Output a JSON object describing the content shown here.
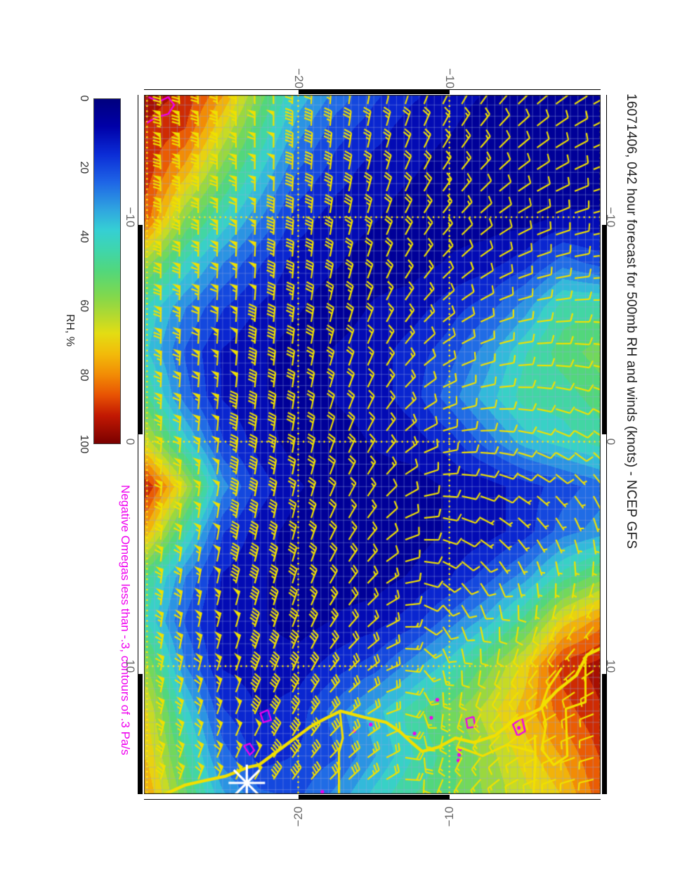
{
  "title": {
    "text": "16071406, 042 hour forecast for 500mb RH and winds (knots) - NCEP GFS"
  },
  "omega_note": {
    "text": "Negative Omegas less than -.3, contours of .3 Pa/s",
    "color": "#ee00ee"
  },
  "colorbar": {
    "label": "RH, %",
    "ticks": [
      {
        "value": 0,
        "label": "0"
      },
      {
        "value": 20,
        "label": "20"
      },
      {
        "value": 40,
        "label": "40"
      },
      {
        "value": 60,
        "label": "60"
      },
      {
        "value": 80,
        "label": "80"
      },
      {
        "value": 100,
        "label": "100"
      }
    ],
    "stops": [
      [
        0,
        "#00007e"
      ],
      [
        8,
        "#0000a8"
      ],
      [
        16,
        "#0b2cd6"
      ],
      [
        24,
        "#1e64e6"
      ],
      [
        32,
        "#2fa4e0"
      ],
      [
        38,
        "#35cfd4"
      ],
      [
        44,
        "#3fd6ab"
      ],
      [
        50,
        "#52d77b"
      ],
      [
        57,
        "#7fd84e"
      ],
      [
        63,
        "#b4d92f"
      ],
      [
        68,
        "#e3dd13"
      ],
      [
        74,
        "#f2bb0a"
      ],
      [
        80,
        "#f28c05"
      ],
      [
        86,
        "#e85203"
      ],
      [
        92,
        "#c11802"
      ],
      [
        100,
        "#7a0000"
      ]
    ]
  },
  "axes": {
    "lon": {
      "min": -15.45,
      "max": 15.7,
      "ticks": [
        {
          "value": -10,
          "label": "−10"
        },
        {
          "value": 0,
          "label": "0"
        },
        {
          "value": 10,
          "label": "10"
        }
      ]
    },
    "lat": {
      "min": 0.0,
      "max": -30.2,
      "ticks": [
        {
          "value": -10,
          "label": "−10"
        },
        {
          "value": -20,
          "label": "−20"
        }
      ]
    },
    "dotted_grid": {
      "lons": [
        -10,
        0,
        10
      ],
      "lats": [
        0,
        -10,
        -20,
        -30
      ],
      "color": "#ffe60a"
    },
    "minor_grid_deg": 0.5,
    "tick_label_color": "#666666",
    "frame": {
      "colors": [
        "#ffffff",
        "#000000"
      ],
      "boundaries_lon": [
        -10,
        0,
        10
      ],
      "boundaries_lat": [
        -10,
        -20
      ]
    }
  },
  "chart_data": {
    "type": "heatmap",
    "title": "16071406, 042 hour forecast for 500mb RH and winds (knots) - NCEP GFS",
    "field": "500mb relative humidity (%)",
    "rh": {
      "lons": [
        -16,
        -14,
        -12,
        -10,
        -8,
        -6,
        -4,
        -2,
        0,
        2,
        4,
        6,
        8,
        10,
        12,
        14,
        16
      ],
      "lats": [
        0,
        -2.5,
        -5,
        -7.5,
        -10,
        -12.5,
        -15,
        -17.5,
        -20,
        -22.5,
        -25,
        -27.5,
        -30
      ],
      "values": [
        [
          5,
          5,
          5,
          8,
          20,
          45,
          55,
          50,
          45,
          25,
          30,
          55,
          80,
          95,
          92,
          88,
          85
        ],
        [
          5,
          5,
          5,
          8,
          25,
          45,
          50,
          45,
          40,
          20,
          25,
          45,
          70,
          90,
          85,
          78,
          72
        ],
        [
          5,
          5,
          5,
          5,
          15,
          30,
          42,
          45,
          35,
          15,
          15,
          30,
          50,
          70,
          75,
          70,
          65
        ],
        [
          8,
          5,
          5,
          5,
          10,
          20,
          30,
          35,
          25,
          10,
          10,
          20,
          35,
          55,
          65,
          60,
          58
        ],
        [
          10,
          8,
          5,
          5,
          8,
          15,
          20,
          25,
          15,
          8,
          8,
          12,
          25,
          40,
          55,
          50,
          52
        ],
        [
          15,
          10,
          8,
          5,
          5,
          10,
          15,
          15,
          10,
          5,
          5,
          8,
          15,
          30,
          45,
          42,
          48
        ],
        [
          20,
          15,
          10,
          8,
          5,
          8,
          10,
          10,
          8,
          5,
          5,
          5,
          10,
          20,
          35,
          32,
          40
        ],
        [
          28,
          20,
          15,
          10,
          8,
          5,
          8,
          8,
          5,
          5,
          5,
          5,
          8,
          15,
          25,
          22,
          30
        ],
        [
          38,
          30,
          22,
          15,
          10,
          8,
          5,
          5,
          5,
          8,
          5,
          5,
          5,
          10,
          15,
          18,
          22
        ],
        [
          58,
          48,
          38,
          28,
          18,
          12,
          8,
          8,
          10,
          15,
          10,
          8,
          8,
          10,
          12,
          15,
          25
        ],
        [
          82,
          68,
          55,
          42,
          28,
          18,
          12,
          12,
          18,
          30,
          18,
          12,
          10,
          12,
          18,
          25,
          35
        ],
        [
          93,
          88,
          75,
          58,
          42,
          28,
          22,
          25,
          40,
          65,
          45,
          28,
          22,
          28,
          40,
          48,
          55
        ],
        [
          96,
          92,
          90,
          85,
          60,
          42,
          38,
          48,
          65,
          92,
          75,
          48,
          42,
          58,
          68,
          72,
          78
        ]
      ]
    },
    "wind": {
      "units": "knots",
      "barb_color": "#efe000",
      "lons": [
        -16,
        -12,
        -8,
        -4,
        0,
        4,
        8,
        12,
        16
      ],
      "lats": [
        0,
        -5,
        -10,
        -15,
        -20,
        -25,
        -30
      ],
      "speed_kt": [
        [
          10,
          10,
          8,
          8,
          8,
          5,
          5,
          8,
          10
        ],
        [
          12,
          10,
          8,
          8,
          10,
          5,
          8,
          10,
          12
        ],
        [
          15,
          15,
          12,
          10,
          10,
          8,
          10,
          15,
          15
        ],
        [
          25,
          25,
          20,
          15,
          15,
          12,
          15,
          20,
          25
        ],
        [
          45,
          40,
          35,
          30,
          25,
          25,
          30,
          35,
          40
        ],
        [
          75,
          70,
          62,
          55,
          50,
          50,
          52,
          55,
          58
        ],
        [
          88,
          82,
          75,
          70,
          65,
          65,
          65,
          68,
          72
        ]
      ],
      "dir_from_deg": [
        [
          330,
          340,
          355,
          10,
          40,
          80,
          130,
          160,
          170
        ],
        [
          315,
          325,
          340,
          355,
          15,
          50,
          100,
          140,
          160
        ],
        [
          295,
          305,
          315,
          330,
          350,
          20,
          60,
          100,
          120
        ],
        [
          280,
          285,
          290,
          295,
          300,
          310,
          320,
          330,
          320
        ],
        [
          270,
          272,
          275,
          278,
          280,
          285,
          290,
          300,
          310
        ],
        [
          268,
          270,
          272,
          274,
          276,
          280,
          285,
          290,
          295
        ],
        [
          265,
          268,
          270,
          272,
          274,
          276,
          278,
          282,
          288
        ]
      ]
    },
    "map_lines": {
      "color": "#f2df00",
      "coastline": [
        [
          9.1,
          0.35
        ],
        [
          9.5,
          -0.9
        ],
        [
          10.4,
          -1.6
        ],
        [
          11.1,
          -2.9
        ],
        [
          11.9,
          -4.0
        ],
        [
          12.1,
          -4.6
        ],
        [
          12.4,
          -5.7
        ],
        [
          13.1,
          -7.0
        ],
        [
          13.4,
          -8.4
        ],
        [
          13.2,
          -9.6
        ],
        [
          13.6,
          -10.7
        ],
        [
          13.8,
          -11.8
        ],
        [
          13.4,
          -12.5
        ],
        [
          12.9,
          -13.3
        ],
        [
          12.5,
          -14.2
        ],
        [
          12.3,
          -15.5
        ],
        [
          12.0,
          -17.2
        ],
        [
          12.4,
          -18.4
        ],
        [
          12.7,
          -19.2
        ],
        [
          13.3,
          -20.4
        ],
        [
          13.9,
          -21.6
        ],
        [
          14.4,
          -22.6
        ],
        [
          14.5,
          -23.3
        ],
        [
          14.9,
          -24.8
        ],
        [
          15.1,
          -26.2
        ],
        [
          15.3,
          -27.5
        ],
        [
          15.7,
          -28.8
        ]
      ],
      "borders": [
        [
          [
            12.0,
            -17.25
          ],
          [
            13.2,
            -17.05
          ],
          [
            13.8,
            -17.3
          ],
          [
            15.7,
            -17.3
          ]
        ],
        [
          [
            13.1,
            -4.35
          ],
          [
            14.2,
            -4.3
          ],
          [
            15.7,
            -4.45
          ]
        ],
        [
          [
            9.8,
            -1.0
          ],
          [
            11.6,
            -1.0
          ],
          [
            11.9,
            -2.3
          ],
          [
            14.0,
            -2.2
          ],
          [
            14.4,
            -3.1
          ],
          [
            13.7,
            -3.9
          ],
          [
            12.6,
            -3.6
          ],
          [
            11.8,
            -3.9
          ],
          [
            11.0,
            -3.5
          ],
          [
            10.1,
            -2.6
          ]
        ],
        [
          [
            13.8,
            -4.5
          ],
          [
            13.5,
            -6.2
          ],
          [
            14.0,
            -7.8
          ],
          [
            13.6,
            -9.4
          ]
        ]
      ]
    },
    "omega_contours": {
      "color": "#ee00ee",
      "interval": "0.3 Pa/s",
      "lines": [
        [
          [
            -15.35,
            -29.9
          ],
          [
            -15.15,
            -29.2
          ],
          [
            -15.35,
            -28.6
          ],
          [
            -15.0,
            -28.2
          ],
          [
            -14.6,
            -28.6
          ],
          [
            -14.45,
            -29.4
          ],
          [
            -14.2,
            -30.0
          ]
        ],
        [
          [
            13.55,
            -23.6
          ],
          [
            13.95,
            -23.2
          ],
          [
            13.75,
            -22.9
          ],
          [
            13.45,
            -23.2
          ],
          [
            13.55,
            -23.6
          ]
        ],
        [
          [
            11.95,
            -22.0
          ],
          [
            12.4,
            -21.8
          ],
          [
            12.5,
            -22.3
          ],
          [
            12.1,
            -22.5
          ],
          [
            11.95,
            -22.0
          ]
        ],
        [
          [
            12.25,
            -8.4
          ],
          [
            12.7,
            -8.3
          ],
          [
            12.75,
            -8.8
          ],
          [
            12.35,
            -8.9
          ],
          [
            12.25,
            -8.4
          ]
        ],
        [
          [
            12.3,
            -5.2
          ],
          [
            12.9,
            -5.0
          ],
          [
            13.1,
            -5.5
          ],
          [
            12.6,
            -5.8
          ],
          [
            12.3,
            -5.2
          ]
        ]
      ],
      "dots": [
        [
          12.9,
          -16.3
        ],
        [
          12.6,
          -15.2
        ],
        [
          13.0,
          -12.3
        ],
        [
          12.3,
          -11.2
        ],
        [
          11.5,
          -10.8
        ],
        [
          13.7,
          -9.3
        ],
        [
          13.95,
          -9.35
        ],
        [
          14.2,
          -9.4
        ],
        [
          12.75,
          -5.4
        ],
        [
          15.6,
          -18.4
        ]
      ]
    },
    "marker": {
      "symbol": "asterisk",
      "lon": 15.2,
      "lat": -23.4,
      "color": "#ffffff"
    }
  }
}
